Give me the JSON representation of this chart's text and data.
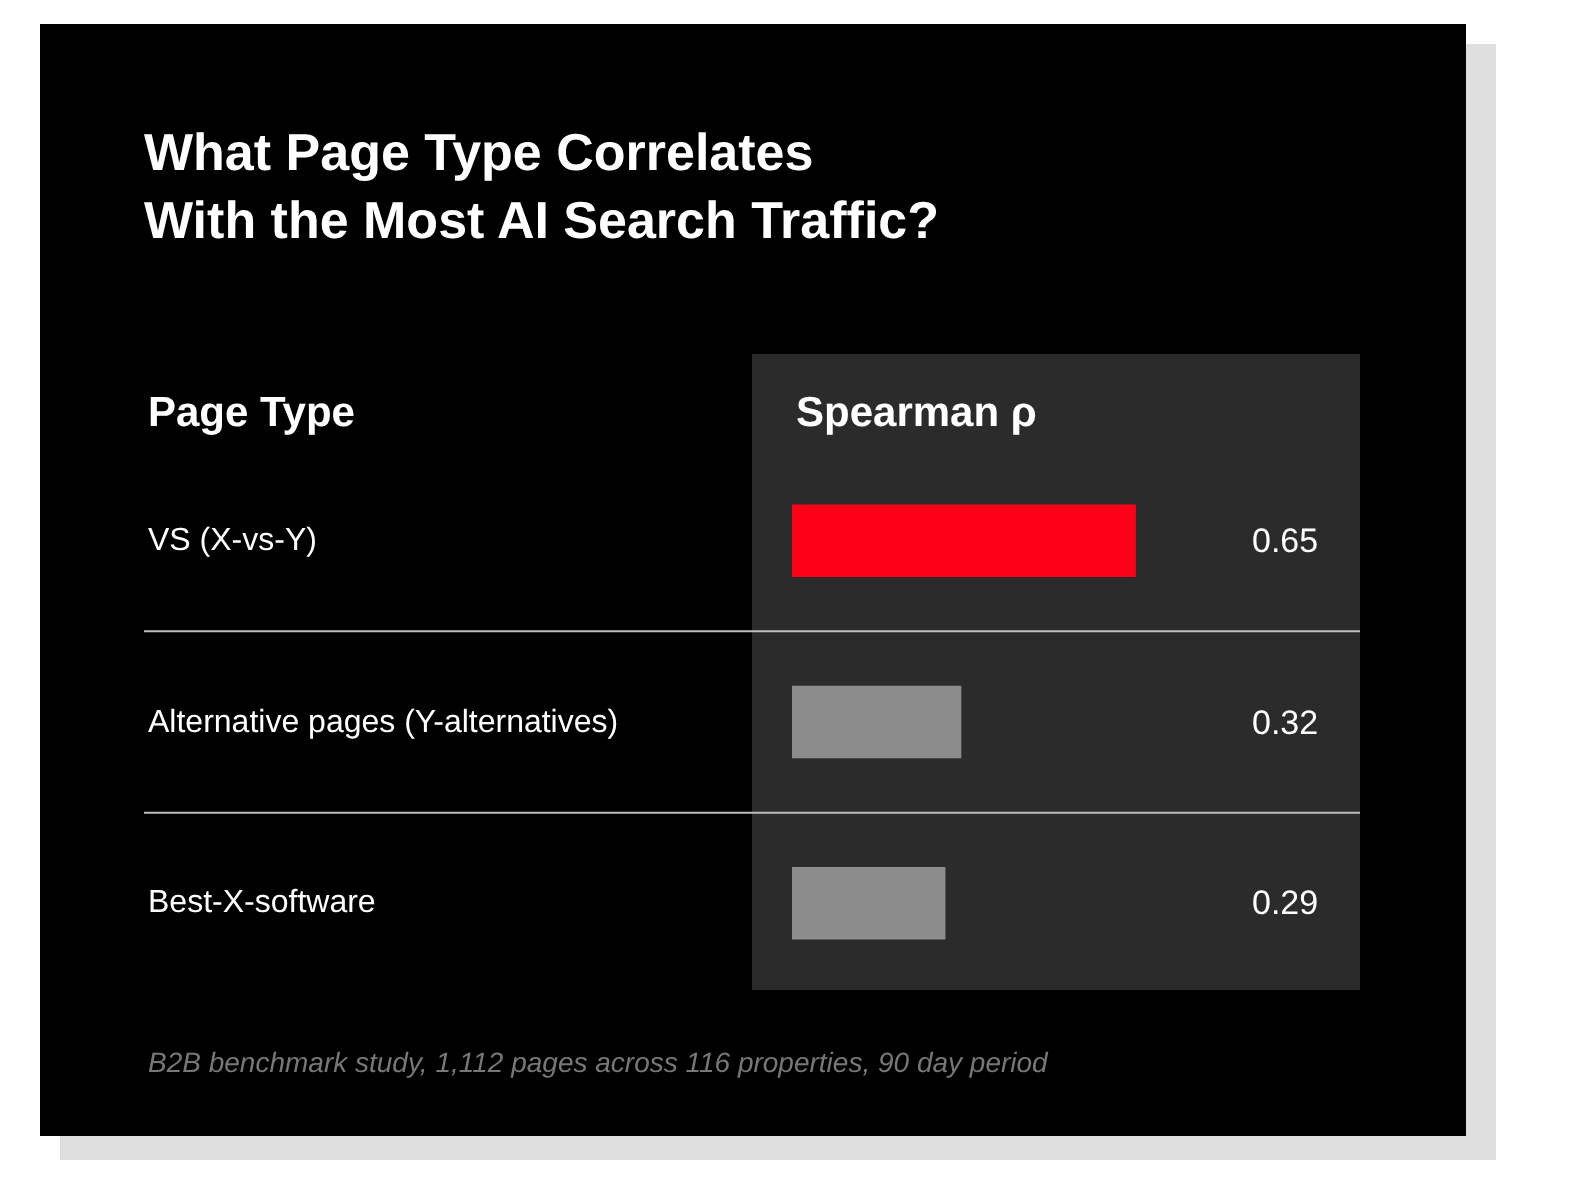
{
  "chart_data": {
    "type": "bar",
    "orientation": "horizontal",
    "title": "What Page Type Correlates\nWith the Most AI Search Traffic?",
    "ylabel": "Page Type",
    "xlabel": "Spearman ρ",
    "categories": [
      "VS (X-vs-Y)",
      "Alternative pages (Y-alternatives)",
      "Best-X-software"
    ],
    "values": [
      0.65,
      0.32,
      0.29
    ],
    "colors": [
      "#ff0019",
      "#8c8c8c",
      "#8c8c8c"
    ],
    "data_labels": true,
    "grid": false,
    "legend": false,
    "tick_labels": "y",
    "annotations": [
      "B2B benchmark study, 1,112 pages across 116 properties, 90 day period"
    ]
  }
}
